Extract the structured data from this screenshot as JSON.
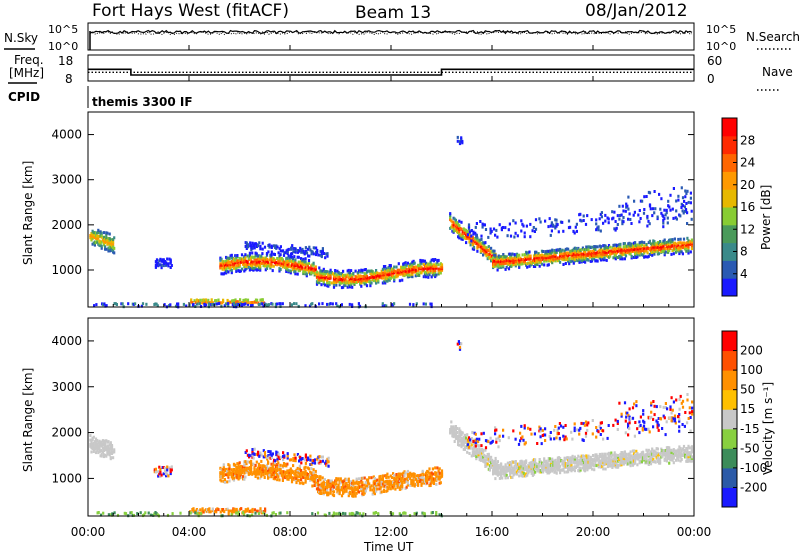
{
  "header": {
    "station": "Fort Hays West (fitACF)",
    "beam": "Beam 13",
    "date": "08/Jan/2012"
  },
  "noise_panel": {
    "left_label": "N.Sky",
    "left_ticks": [
      "10^5",
      "10^0"
    ],
    "right_label": "N.Search",
    "right_ticks": [
      "10^5",
      "10^0"
    ],
    "right_legend_style": "dotted"
  },
  "freq_panel": {
    "left_label_1": "Freq.",
    "left_label_2": "[MHz]",
    "left_ticks": [
      "18",
      "8"
    ],
    "right_label": "Nave",
    "right_ticks": [
      "60",
      "0"
    ],
    "right_legend_style": "dotted"
  },
  "cpid": {
    "label": "CPID",
    "value": "themis 3300 IF"
  },
  "x_axis": {
    "label": "Time UT",
    "ticks": [
      "00:00",
      "04:00",
      "08:00",
      "12:00",
      "16:00",
      "20:00",
      "00:00"
    ],
    "range_hours": [
      0,
      24
    ]
  },
  "chart_data": [
    {
      "type": "line",
      "name": "noise",
      "x_range_hours": [
        0,
        24
      ],
      "y_scale": "log",
      "ylim_exponent": [
        0,
        5
      ],
      "series": [
        {
          "name": "N.Sky",
          "style": "solid",
          "approx_level_exponent": 4.5
        },
        {
          "name": "N.Search",
          "style": "dotted",
          "approx_level_exponent": 4.5
        }
      ]
    },
    {
      "type": "line",
      "name": "frequency",
      "x_range_hours": [
        0,
        24
      ],
      "series": [
        {
          "name": "Freq.",
          "style": "solid",
          "units": "MHz",
          "x": [
            0,
            1.7,
            1.7,
            14.0,
            14.0,
            24
          ],
          "y": [
            12.5,
            12.5,
            10.3,
            10.3,
            12.5,
            12.5
          ]
        },
        {
          "name": "Nave",
          "style": "dotted",
          "x": [
            0,
            24
          ],
          "y": [
            20,
            20
          ]
        }
      ],
      "ylim_left": [
        8,
        18
      ],
      "ylim_right": [
        0,
        60
      ]
    },
    {
      "type": "heatmap",
      "name": "power",
      "xlabel": "Time UT",
      "ylabel": "Slant Range [km]",
      "xlim_hours": [
        0,
        24
      ],
      "ylim_km": [
        180,
        4500
      ],
      "y_ticks": [
        1000,
        2000,
        3000,
        4000
      ],
      "colorbar": {
        "label": "Power [dB]",
        "ticks": [
          "4",
          "8",
          "12",
          "16",
          "20",
          "24",
          "28"
        ],
        "colors": [
          "#1a1aff",
          "#2a5ab3",
          "#3a8a8a",
          "#4a9a5a",
          "#88cc33",
          "#e6b800",
          "#ff9900",
          "#ff6600",
          "#ff2a00",
          "#ff0000"
        ]
      }
    },
    {
      "type": "heatmap",
      "name": "velocity",
      "xlabel": "Time UT",
      "ylabel": "Slant Range [km]",
      "xlim_hours": [
        0,
        24
      ],
      "ylim_km": [
        180,
        4500
      ],
      "y_ticks": [
        1000,
        2000,
        3000,
        4000
      ],
      "colorbar": {
        "label": "Velocity [m s⁻¹]",
        "ticks": [
          "200",
          "100",
          "50",
          "15",
          "-15",
          "-50",
          "-100",
          "-200"
        ],
        "colors": [
          "#1a1aff",
          "#2b5aa8",
          "#3c8c5a",
          "#88d040",
          "#c8c8c8",
          "#ffc000",
          "#ff9000",
          "#ff5000",
          "#ff0000"
        ]
      }
    }
  ]
}
